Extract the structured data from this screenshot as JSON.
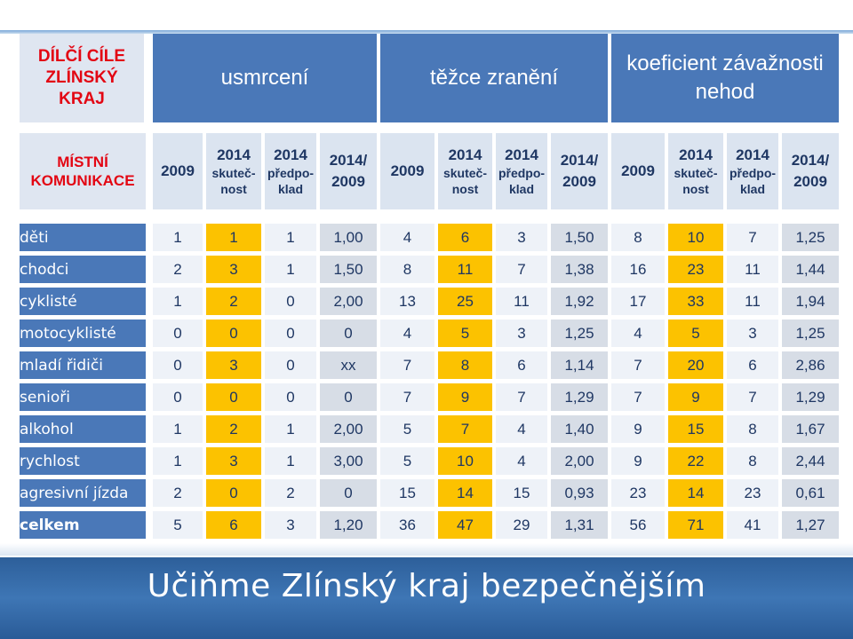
{
  "header": {
    "corner_title": "DÍLČÍ CÍLE ZLÍNSKÝ KRAJ",
    "groups": [
      "usmrcení",
      "těžce zranění",
      "koeficient závažnosti nehod"
    ]
  },
  "subheader": {
    "corner_title": "MÍSTNÍ KOMUNIKACE",
    "col_2009": "2009",
    "col_2014": "2014",
    "col_skut": "skuteč-nost",
    "col_pred": "předpo-klad",
    "col_ratio_top": "2014/",
    "col_ratio_bottom": "2009"
  },
  "rows": [
    {
      "label": "děti",
      "values": [
        "1",
        "1",
        "1",
        "1,00",
        "4",
        "6",
        "3",
        "1,50",
        "8",
        "10",
        "7",
        "1,25"
      ]
    },
    {
      "label": "chodci",
      "values": [
        "2",
        "3",
        "1",
        "1,50",
        "8",
        "11",
        "7",
        "1,38",
        "16",
        "23",
        "11",
        "1,44"
      ]
    },
    {
      "label": "cyklisté",
      "values": [
        "1",
        "2",
        "0",
        "2,00",
        "13",
        "25",
        "11",
        "1,92",
        "17",
        "33",
        "11",
        "1,94"
      ]
    },
    {
      "label": "motocyklisté",
      "values": [
        "0",
        "0",
        "0",
        "0",
        "4",
        "5",
        "3",
        "1,25",
        "4",
        "5",
        "3",
        "1,25"
      ]
    },
    {
      "label": "mladí  řidiči",
      "values": [
        "0",
        "3",
        "0",
        "xx",
        "7",
        "8",
        "6",
        "1,14",
        "7",
        "20",
        "6",
        "2,86"
      ]
    },
    {
      "label": "senioři",
      "values": [
        "0",
        "0",
        "0",
        "0",
        "7",
        "9",
        "7",
        "1,29",
        "7",
        "9",
        "7",
        "1,29"
      ]
    },
    {
      "label": "alkohol",
      "values": [
        "1",
        "2",
        "1",
        "2,00",
        "5",
        "7",
        "4",
        "1,40",
        "9",
        "15",
        "8",
        "1,67"
      ]
    },
    {
      "label": "rychlost",
      "values": [
        "1",
        "3",
        "1",
        "3,00",
        "5",
        "10",
        "4",
        "2,00",
        "9",
        "22",
        "8",
        "2,44"
      ]
    },
    {
      "label": "agresivní jízda",
      "values": [
        "2",
        "0",
        "2",
        "0",
        "15",
        "14",
        "15",
        "0,93",
        "23",
        "14",
        "23",
        "0,61"
      ]
    },
    {
      "label": "celkem",
      "values": [
        "5",
        "6",
        "3",
        "1,20",
        "36",
        "47",
        "29",
        "1,31",
        "56",
        "71",
        "41",
        "1,27"
      ]
    }
  ],
  "footer": {
    "slogan": "Učiňme Zlínský kraj bezpečnějším"
  },
  "colors": {
    "header_blue": "#4a78b8",
    "highlight_yellow": "#fcc200",
    "corner_red": "#e30613",
    "text_navy": "#1f3763"
  }
}
